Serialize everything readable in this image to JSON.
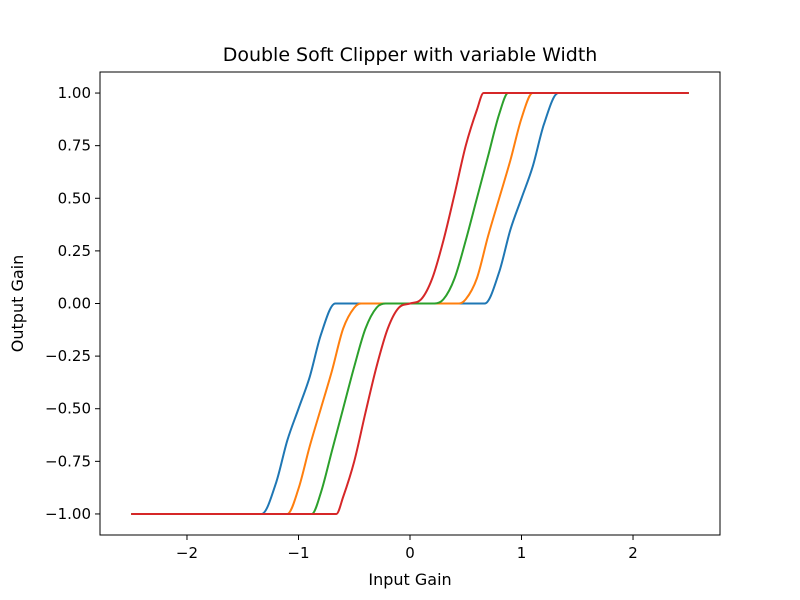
{
  "chart_data": {
    "type": "line",
    "title": "Double Soft Clipper with variable Width",
    "xlabel": "Input Gain",
    "ylabel": "Output Gain",
    "xlim": [
      -2.78,
      2.78
    ],
    "ylim": [
      -1.1,
      1.1
    ],
    "xticks": [
      {
        "value": -2,
        "label": "−2"
      },
      {
        "value": -1,
        "label": "−1"
      },
      {
        "value": 0,
        "label": "0"
      },
      {
        "value": 1,
        "label": "1"
      },
      {
        "value": 2,
        "label": "2"
      }
    ],
    "yticks": [
      {
        "value": 1.0,
        "label": "1.00"
      },
      {
        "value": 0.75,
        "label": "0.75"
      },
      {
        "value": 0.5,
        "label": "0.50"
      },
      {
        "value": 0.25,
        "label": "0.25"
      },
      {
        "value": 0.0,
        "label": "0.00"
      },
      {
        "value": -0.25,
        "label": "−0.25"
      },
      {
        "value": -0.5,
        "label": "−0.50"
      },
      {
        "value": -0.75,
        "label": "−0.75"
      },
      {
        "value": -1.0,
        "label": "−1.00"
      }
    ],
    "grid": false,
    "legend": "none",
    "series": [
      {
        "color": "#1f77b4",
        "x": [
          -2.5,
          -1.33,
          -1.2,
          -1.1,
          -1.0,
          -0.9,
          -0.8,
          -0.67,
          0.67,
          0.8,
          0.9,
          1.0,
          1.1,
          1.2,
          1.33,
          2.5
        ],
        "y": [
          -1,
          -1,
          -0.85,
          -0.65,
          -0.5,
          -0.35,
          -0.15,
          0,
          0,
          0.15,
          0.35,
          0.5,
          0.65,
          0.85,
          1,
          1
        ]
      },
      {
        "color": "#ff7f0e",
        "x": [
          -2.5,
          -1.1,
          -1.0,
          -0.9,
          -0.8,
          -0.7,
          -0.6,
          -0.5,
          -0.44,
          0.44,
          0.5,
          0.6,
          0.7,
          0.8,
          0.9,
          1.0,
          1.1,
          2.5
        ],
        "y": [
          -1,
          -1,
          -0.88,
          -0.68,
          -0.5,
          -0.32,
          -0.12,
          -0.02,
          0,
          0,
          0.02,
          0.12,
          0.32,
          0.5,
          0.68,
          0.88,
          1,
          1
        ]
      },
      {
        "color": "#2ca02c",
        "x": [
          -2.5,
          -0.88,
          -0.8,
          -0.7,
          -0.6,
          -0.5,
          -0.4,
          -0.3,
          -0.22,
          0.22,
          0.3,
          0.4,
          0.5,
          0.6,
          0.7,
          0.8,
          0.88,
          2.5
        ],
        "y": [
          -1,
          -1,
          -0.9,
          -0.7,
          -0.5,
          -0.3,
          -0.12,
          -0.02,
          0,
          0,
          0.02,
          0.12,
          0.3,
          0.5,
          0.7,
          0.9,
          1,
          1
        ]
      },
      {
        "color": "#d62728",
        "x": [
          -2.5,
          -0.66,
          -0.6,
          -0.5,
          -0.4,
          -0.3,
          -0.2,
          -0.1,
          0,
          0.1,
          0.2,
          0.3,
          0.4,
          0.5,
          0.6,
          0.66,
          2.5
        ],
        "y": [
          -1,
          -1,
          -0.92,
          -0.75,
          -0.52,
          -0.3,
          -0.12,
          -0.02,
          0,
          0.02,
          0.12,
          0.3,
          0.52,
          0.75,
          0.92,
          1,
          1
        ]
      }
    ]
  }
}
